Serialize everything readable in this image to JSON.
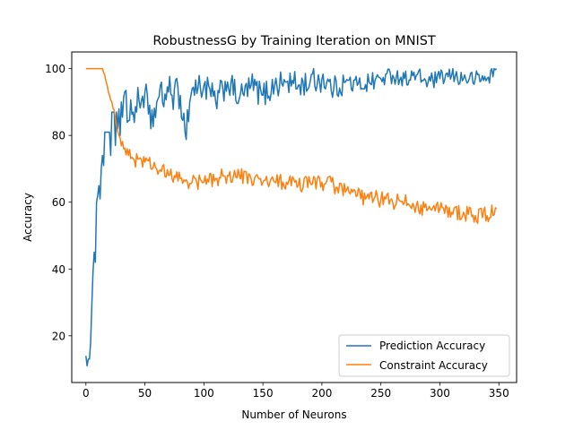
{
  "chart_data": {
    "type": "line",
    "title": "RobustnessG by Training Iteration on MNIST",
    "xlabel": "Number of Neurons",
    "ylabel": "Accuracy",
    "xlim": [
      -12,
      365
    ],
    "ylim": [
      6,
      105
    ],
    "xticks": [
      0,
      50,
      100,
      150,
      200,
      250,
      300,
      350
    ],
    "yticks": [
      20,
      40,
      60,
      80,
      100
    ],
    "grid": false,
    "legend_position": "lower-right",
    "series": [
      {
        "name": "Prediction Accuracy",
        "color": "#1f77b4",
        "anchors": [
          [
            0,
            14
          ],
          [
            1,
            11
          ],
          [
            2,
            13
          ],
          [
            3,
            13
          ],
          [
            4,
            18
          ],
          [
            5,
            29
          ],
          [
            6,
            39
          ],
          [
            7,
            45
          ],
          [
            8,
            42
          ],
          [
            9,
            60
          ],
          [
            10,
            62
          ],
          [
            11,
            65
          ],
          [
            12,
            61
          ],
          [
            13,
            70
          ],
          [
            14,
            74
          ],
          [
            15,
            71
          ],
          [
            16,
            81
          ],
          [
            17,
            81
          ],
          [
            18,
            81
          ],
          [
            19,
            81
          ],
          [
            20,
            81
          ],
          [
            21,
            74
          ],
          [
            22,
            87
          ],
          [
            23,
            87
          ],
          [
            24,
            87
          ],
          [
            25,
            77
          ],
          [
            26,
            87
          ],
          [
            27,
            82
          ],
          [
            28,
            88
          ],
          [
            29,
            80
          ],
          [
            30,
            90
          ],
          [
            40,
            87
          ],
          [
            50,
            93
          ],
          [
            55,
            82
          ],
          [
            60,
            90
          ],
          [
            70,
            93
          ],
          [
            80,
            92
          ],
          [
            84,
            81
          ],
          [
            90,
            94
          ],
          [
            100,
            95
          ],
          [
            110,
            90
          ],
          [
            120,
            96
          ],
          [
            130,
            91
          ],
          [
            140,
            95
          ],
          [
            150,
            92
          ],
          [
            160,
            95
          ],
          [
            170,
            96
          ],
          [
            180,
            95
          ],
          [
            190,
            96
          ],
          [
            200,
            97
          ],
          [
            210,
            94
          ],
          [
            220,
            96
          ],
          [
            230,
            95
          ],
          [
            240,
            96
          ],
          [
            250,
            97
          ],
          [
            260,
            98
          ],
          [
            270,
            97
          ],
          [
            280,
            98
          ],
          [
            290,
            96
          ],
          [
            300,
            97
          ],
          [
            310,
            98
          ],
          [
            320,
            97
          ],
          [
            330,
            97
          ],
          [
            340,
            97
          ],
          [
            348,
            100
          ]
        ],
        "noise": [
          [
            0,
            0
          ],
          [
            28,
            0
          ],
          [
            30,
            5
          ],
          [
            90,
            5
          ],
          [
            120,
            4
          ],
          [
            200,
            4
          ],
          [
            260,
            2.5
          ],
          [
            348,
            2.5
          ]
        ]
      },
      {
        "name": "Constraint Accuracy",
        "color": "#ff7f0e",
        "anchors": [
          [
            0,
            100
          ],
          [
            5,
            100
          ],
          [
            14,
            100
          ],
          [
            16,
            98
          ],
          [
            18,
            95
          ],
          [
            20,
            92
          ],
          [
            22,
            90
          ],
          [
            25,
            85
          ],
          [
            28,
            80
          ],
          [
            32,
            76
          ],
          [
            36,
            74
          ],
          [
            40,
            73
          ],
          [
            45,
            73
          ],
          [
            50,
            72
          ],
          [
            60,
            70
          ],
          [
            70,
            68
          ],
          [
            80,
            67
          ],
          [
            90,
            66
          ],
          [
            100,
            66
          ],
          [
            110,
            67
          ],
          [
            120,
            68
          ],
          [
            130,
            68
          ],
          [
            140,
            67
          ],
          [
            150,
            66
          ],
          [
            160,
            66
          ],
          [
            170,
            66
          ],
          [
            180,
            65
          ],
          [
            190,
            66
          ],
          [
            200,
            66
          ],
          [
            210,
            65
          ],
          [
            220,
            63
          ],
          [
            230,
            62
          ],
          [
            240,
            61
          ],
          [
            250,
            61
          ],
          [
            260,
            60
          ],
          [
            270,
            60
          ],
          [
            280,
            59
          ],
          [
            290,
            58
          ],
          [
            300,
            58
          ],
          [
            310,
            57
          ],
          [
            320,
            57
          ],
          [
            330,
            56
          ],
          [
            340,
            56
          ],
          [
            348,
            58
          ]
        ],
        "noise": [
          [
            0,
            0
          ],
          [
            14,
            0
          ],
          [
            24,
            1
          ],
          [
            40,
            2.5
          ],
          [
            348,
            2.5
          ]
        ]
      }
    ]
  }
}
